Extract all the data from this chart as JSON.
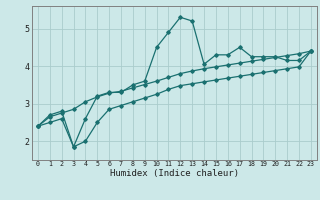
{
  "xlabel": "Humidex (Indice chaleur)",
  "background_color": "#cce8e8",
  "grid_color": "#aacccc",
  "line_color": "#1a7070",
  "x": [
    0,
    1,
    2,
    3,
    4,
    5,
    6,
    7,
    8,
    9,
    10,
    11,
    12,
    13,
    14,
    15,
    16,
    17,
    18,
    19,
    20,
    21,
    22,
    23
  ],
  "line1": [
    2.4,
    2.7,
    2.8,
    1.85,
    2.6,
    3.2,
    3.3,
    3.3,
    3.5,
    3.6,
    4.5,
    4.9,
    5.3,
    5.2,
    4.05,
    4.3,
    4.3,
    4.5,
    4.25,
    4.25,
    4.25,
    4.15,
    4.15,
    4.4
  ],
  "line2": [
    2.4,
    2.65,
    2.75,
    2.85,
    3.05,
    3.18,
    3.28,
    3.33,
    3.42,
    3.51,
    3.6,
    3.7,
    3.8,
    3.87,
    3.93,
    3.98,
    4.03,
    4.08,
    4.13,
    4.18,
    4.23,
    4.28,
    4.33,
    4.4
  ],
  "line3": [
    2.4,
    2.5,
    2.6,
    1.85,
    2.0,
    2.5,
    2.85,
    2.95,
    3.05,
    3.15,
    3.25,
    3.38,
    3.48,
    3.53,
    3.58,
    3.63,
    3.68,
    3.73,
    3.78,
    3.83,
    3.88,
    3.93,
    3.98,
    4.4
  ],
  "xlim": [
    -0.5,
    23.5
  ],
  "ylim": [
    1.5,
    5.6
  ],
  "yticks": [
    2,
    3,
    4,
    5
  ],
  "xticks": [
    0,
    1,
    2,
    3,
    4,
    5,
    6,
    7,
    8,
    9,
    10,
    11,
    12,
    13,
    14,
    15,
    16,
    17,
    18,
    19,
    20,
    21,
    22,
    23
  ]
}
